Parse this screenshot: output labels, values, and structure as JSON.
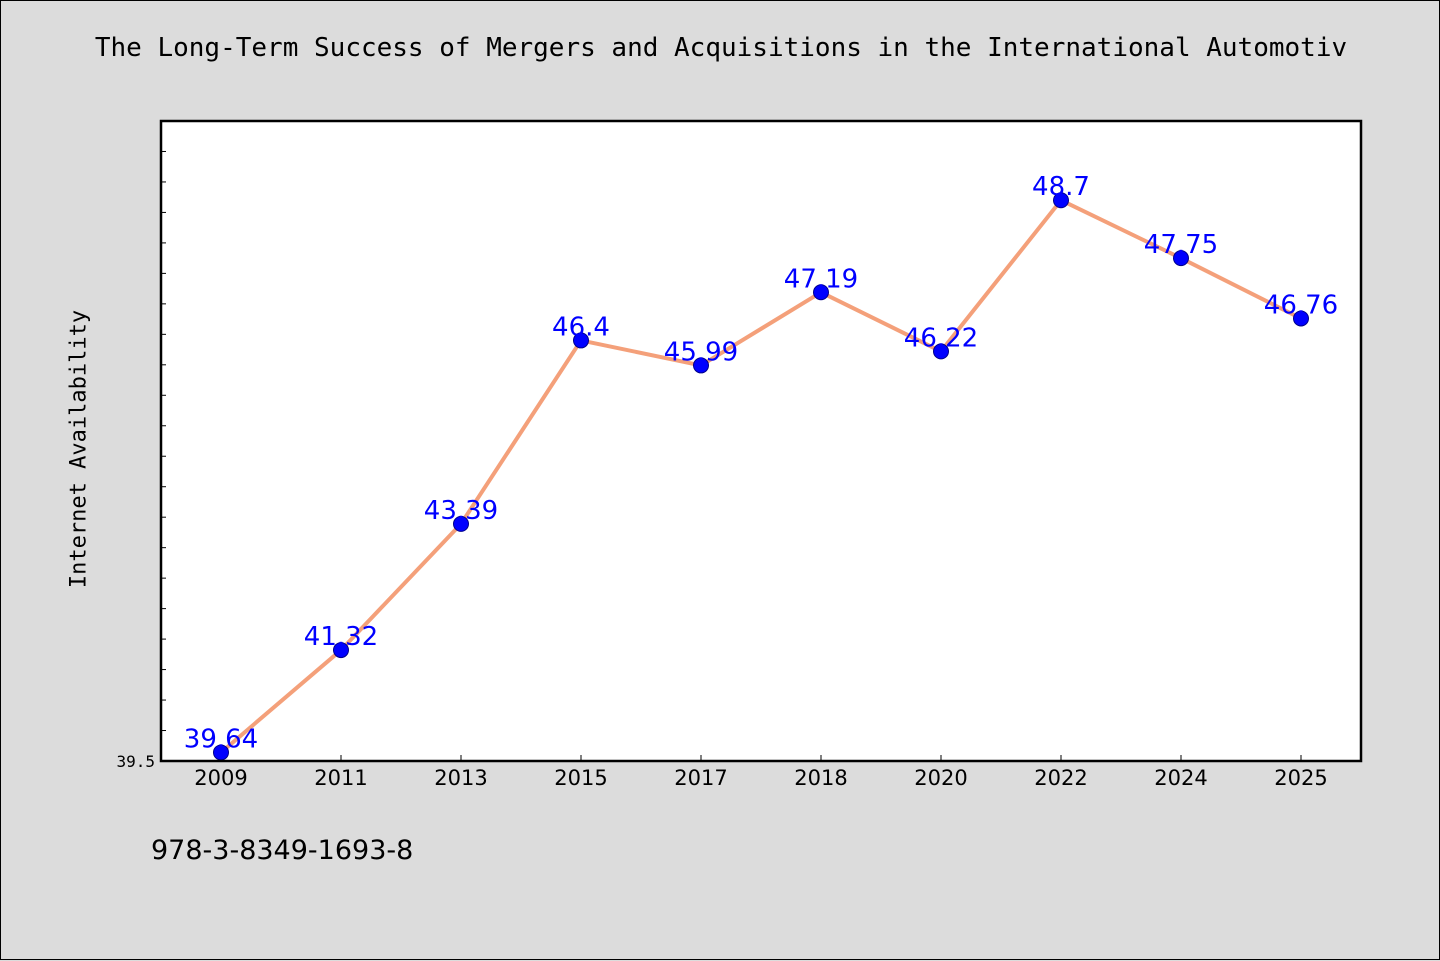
{
  "title": "The Long-Term Success of Mergers and Acquisitions in the International Automotiv",
  "footer_code": "978-3-8349-1693-8",
  "colors": {
    "background": "#dcdcdc",
    "plot_background": "#ffffff",
    "line": "#f4a07a",
    "marker": "#0000ff",
    "data_label": "#0000ff"
  },
  "chart_data": {
    "type": "line",
    "title": "The Long-Term Success of Mergers and Acquisitions in the International Automotiv",
    "xlabel": "",
    "ylabel": "Internet Availability",
    "categories": [
      "2009",
      "2011",
      "2013",
      "2015",
      "2017",
      "2018",
      "2020",
      "2022",
      "2024",
      "2025"
    ],
    "series": [
      {
        "values": [
          39.64,
          41.32,
          43.39,
          46.4,
          45.99,
          47.19,
          46.22,
          48.7,
          47.75,
          46.76
        ],
        "labels": [
          "39.64",
          "41.32",
          "43.39",
          "46.4",
          "45.99",
          "47.19",
          "46.22",
          "48.7",
          "47.75",
          "46.76"
        ]
      }
    ],
    "ylim": [
      39.5,
      50.0
    ],
    "ytick_labels": [
      "39.5"
    ],
    "grid": false,
    "legend": "none"
  }
}
